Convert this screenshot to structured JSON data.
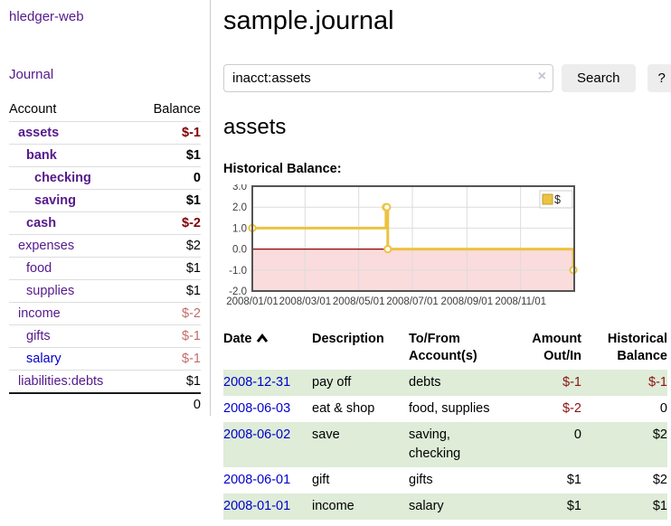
{
  "sidebar": {
    "brand": "hledger-web",
    "nav": {
      "journal": "Journal"
    },
    "accounts_table": {
      "account_header": "Account",
      "balance_header": "Balance",
      "rows": [
        {
          "name": "assets",
          "depth": 1,
          "in_query": true,
          "link": "visited",
          "balance": "$-1",
          "balance_tone": "neg-strong"
        },
        {
          "name": "bank",
          "depth": 2,
          "in_query": true,
          "link": "visited",
          "balance": "$1",
          "balance_tone": "normal"
        },
        {
          "name": "checking",
          "depth": 3,
          "in_query": true,
          "link": "visited",
          "balance": "0",
          "balance_tone": "normal"
        },
        {
          "name": "saving",
          "depth": 3,
          "in_query": true,
          "link": "visited",
          "balance": "$1",
          "balance_tone": "normal"
        },
        {
          "name": "cash",
          "depth": 2,
          "in_query": true,
          "link": "visited",
          "balance": "$-2",
          "balance_tone": "neg-strong"
        },
        {
          "name": "expenses",
          "depth": 1,
          "in_query": false,
          "link": "visited",
          "balance": "$2",
          "balance_tone": "normal"
        },
        {
          "name": "food",
          "depth": 2,
          "in_query": false,
          "link": "visited",
          "balance": "$1",
          "balance_tone": "normal"
        },
        {
          "name": "supplies",
          "depth": 2,
          "in_query": false,
          "link": "visited",
          "balance": "$1",
          "balance_tone": "normal"
        },
        {
          "name": "income",
          "depth": 1,
          "in_query": false,
          "link": "visited",
          "balance": "$-2",
          "balance_tone": "neg-faded"
        },
        {
          "name": "gifts",
          "depth": 2,
          "in_query": false,
          "link": "visited",
          "balance": "$-1",
          "balance_tone": "neg-faded"
        },
        {
          "name": "salary",
          "depth": 2,
          "in_query": false,
          "link": "unvisited",
          "balance": "$-1",
          "balance_tone": "neg-faded"
        },
        {
          "name": "liabilities:debts",
          "depth": 1,
          "in_query": false,
          "link": "visited",
          "balance": "$1",
          "balance_tone": "normal"
        }
      ],
      "total": "0"
    }
  },
  "main": {
    "title": "sample.journal",
    "search": {
      "value": "inacct:assets",
      "clear_icon": "×",
      "search_button": "Search",
      "help_button": "?"
    },
    "account_heading": "assets",
    "chart_title": "Historical Balance:"
  },
  "chart_data": {
    "type": "line",
    "step": true,
    "title": "Historical Balance",
    "series": [
      {
        "name": "$",
        "color": "#edc240",
        "points": [
          [
            "2008-01-01",
            1.0
          ],
          [
            "2008-06-01",
            2.0
          ],
          [
            "2008-06-02",
            2.0
          ],
          [
            "2008-06-03",
            0.0
          ],
          [
            "2008-12-31",
            -1.0
          ]
        ]
      }
    ],
    "x_range": [
      "2008-01-01",
      "2009-01-01"
    ],
    "x_ticks": [
      "2008/01/01",
      "2008/03/01",
      "2008/05/01",
      "2008/07/01",
      "2008/09/01",
      "2008/11/01"
    ],
    "y_ticks": [
      3.0,
      2.0,
      1.0,
      0.0,
      -1.0,
      -2.0
    ],
    "ylim": [
      -2.0,
      3.0
    ],
    "legend": {
      "label": "$",
      "position": "top-right"
    },
    "colors": {
      "line": "#edc240",
      "marker_fill": "#ffffff",
      "grid": "#dcdcdc",
      "border": "#545454",
      "zero_line": "#8b0000",
      "negative_region": "#fadcdc",
      "tick_text": "#3d3d3d",
      "legend_border": "#cccccc",
      "legend_swatch_border": "#bf9e33"
    }
  },
  "register": {
    "columns": [
      {
        "label": "Date",
        "sorted": "asc",
        "align": "left"
      },
      {
        "label": "Description",
        "align": "left"
      },
      {
        "label": "To/From Account(s)",
        "align": "left"
      },
      {
        "label": "Amount Out/In",
        "align": "right"
      },
      {
        "label": "Historical Balance",
        "align": "right"
      }
    ],
    "rows": [
      {
        "date": "2008-12-31",
        "description": "pay off",
        "accounts": "debts",
        "amount": "$-1",
        "amount_tone": "neg",
        "balance": "$-1",
        "balance_tone": "neg"
      },
      {
        "date": "2008-06-03",
        "description": "eat & shop",
        "accounts": "food, supplies",
        "amount": "$-2",
        "amount_tone": "neg",
        "balance": "0",
        "balance_tone": "normal"
      },
      {
        "date": "2008-06-02",
        "description": "save",
        "accounts": "saving, checking",
        "amount": "0",
        "amount_tone": "normal",
        "balance": "$2",
        "balance_tone": "normal"
      },
      {
        "date": "2008-06-01",
        "description": "gift",
        "accounts": "gifts",
        "amount": "$1",
        "amount_tone": "normal",
        "balance": "$2",
        "balance_tone": "normal"
      },
      {
        "date": "2008-01-01",
        "description": "income",
        "accounts": "salary",
        "amount": "$1",
        "amount_tone": "normal",
        "balance": "$1",
        "balance_tone": "normal"
      }
    ]
  }
}
